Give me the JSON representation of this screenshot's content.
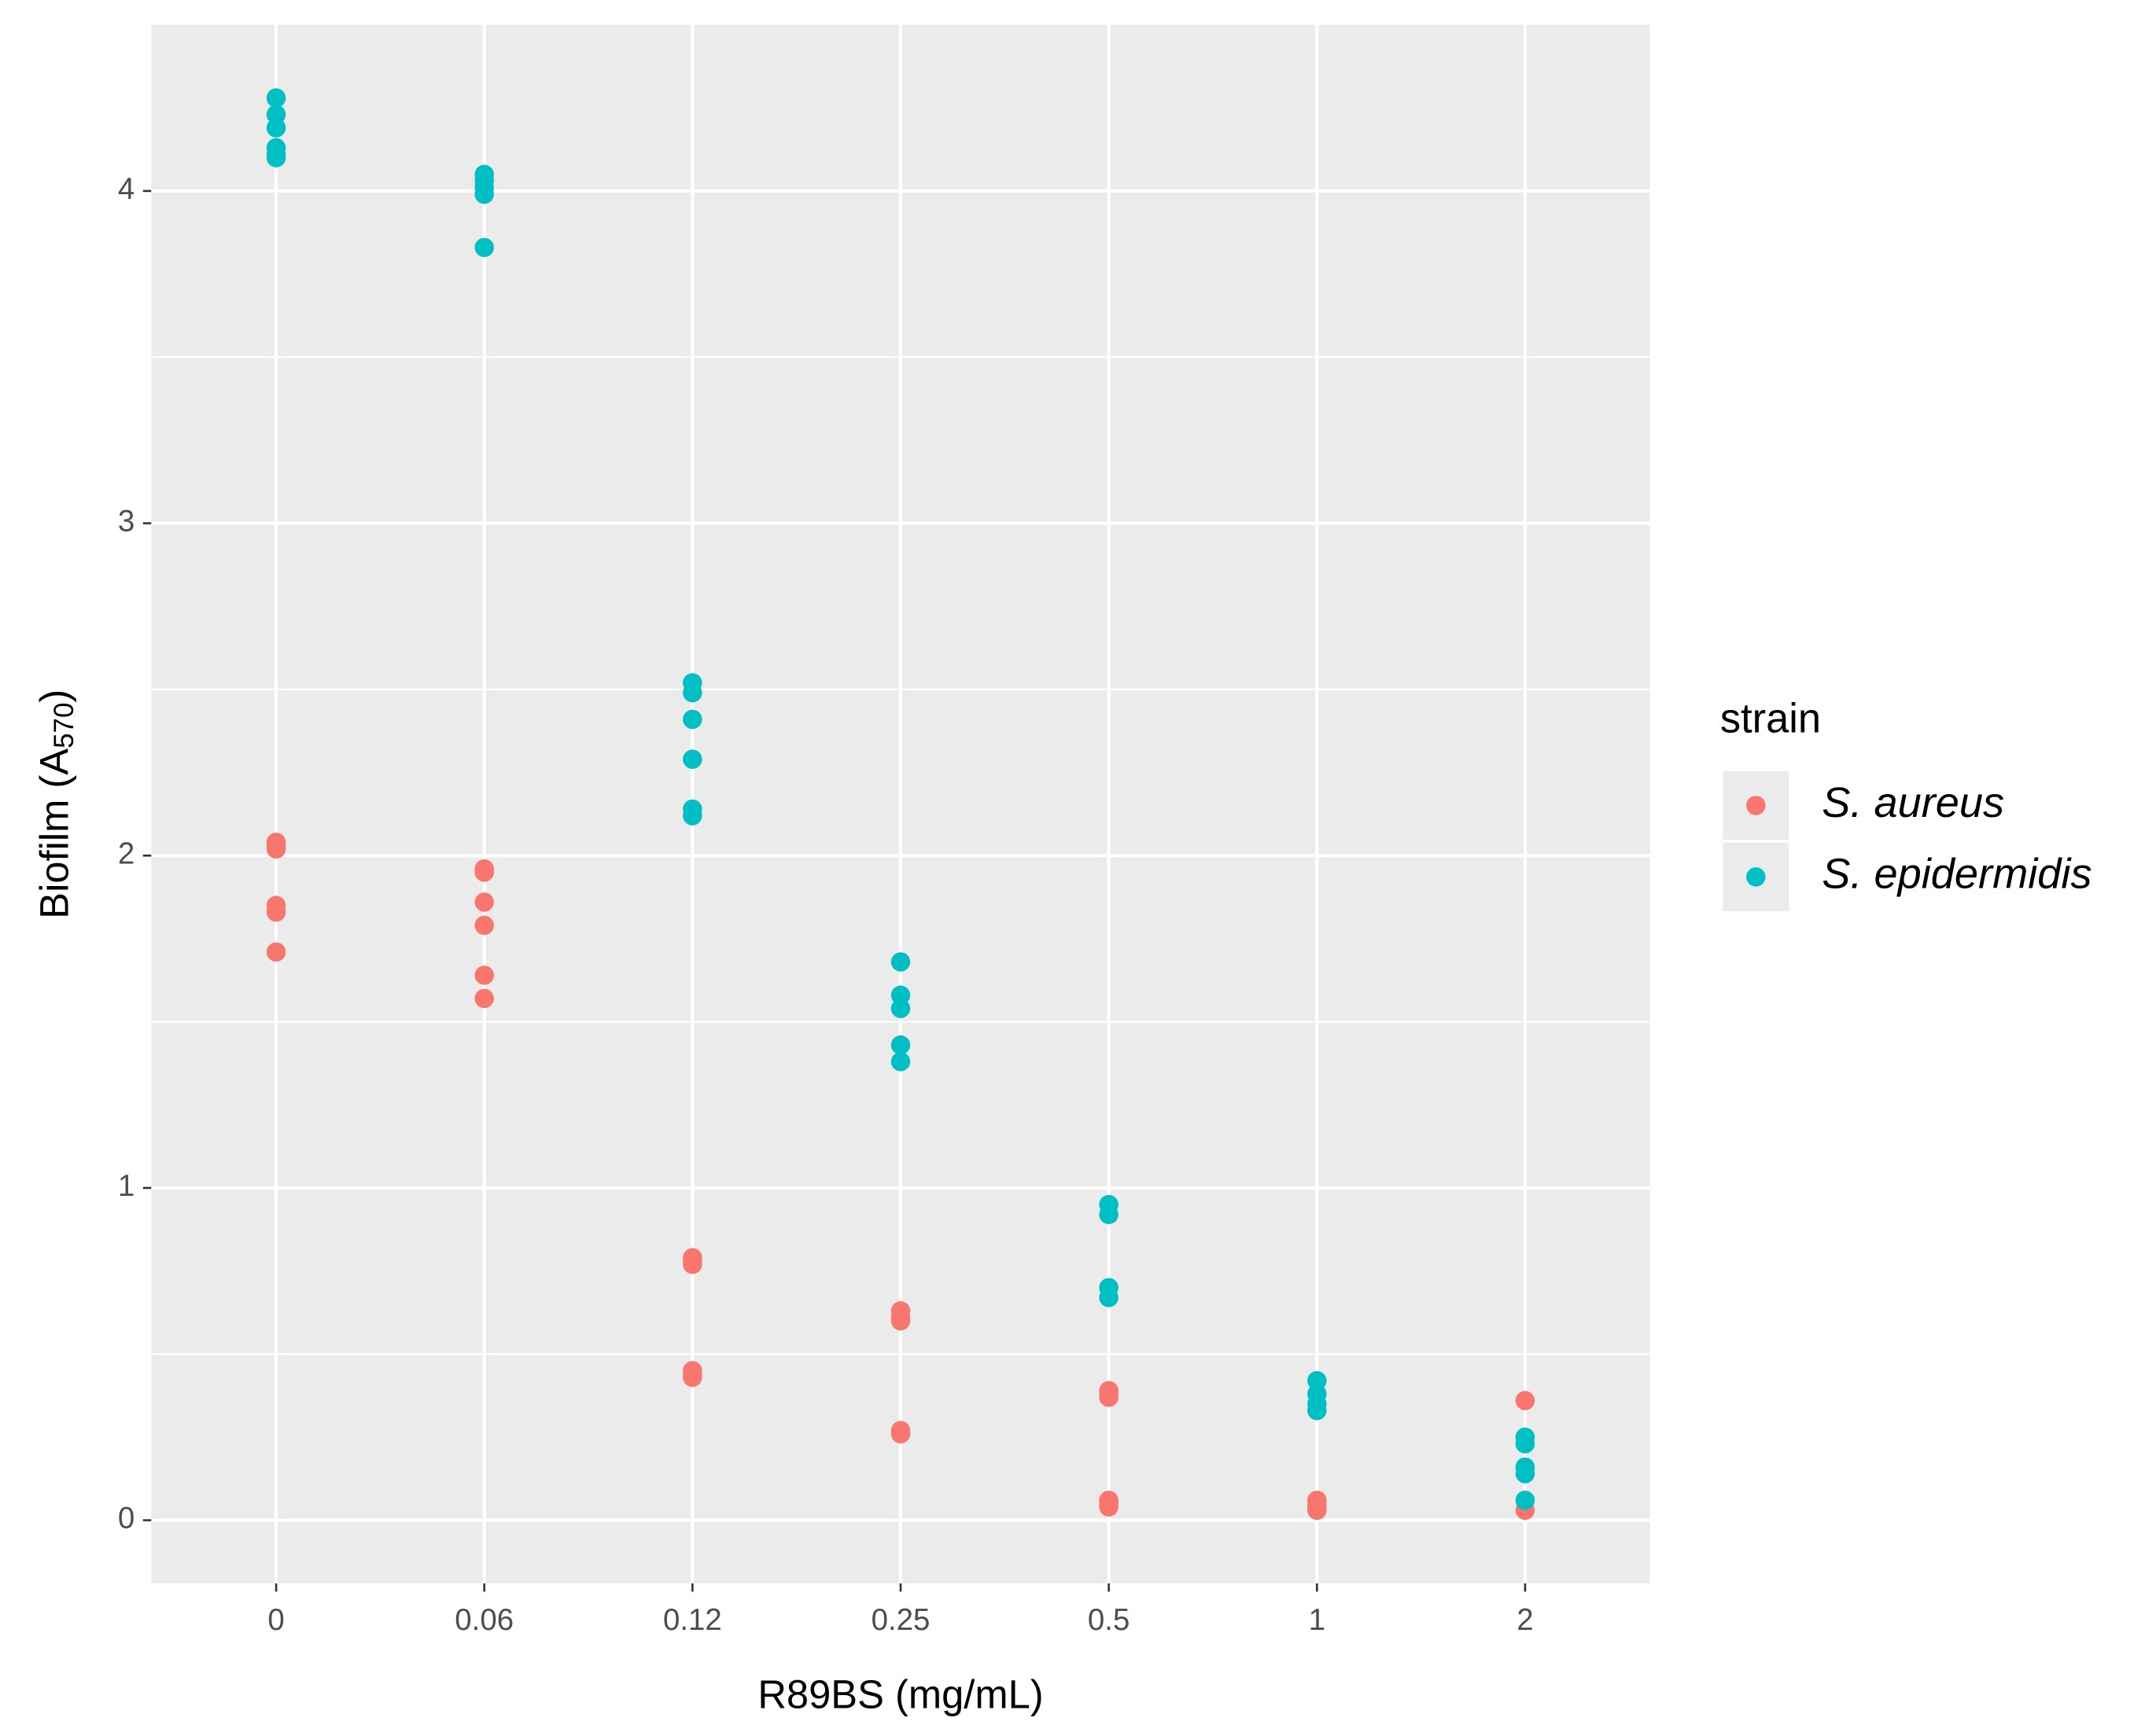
{
  "chart_data": {
    "type": "strip",
    "xlabel": "R89BS (mg/mL)",
    "ylabel": [
      "Biofilm (A",
      "570",
      ")"
    ],
    "categories": [
      "0",
      "0.06",
      "0.12",
      "0.25",
      "0.5",
      "1",
      "2"
    ],
    "ylim": [
      -0.19,
      4.5
    ],
    "yticks": [
      0,
      1,
      2,
      3,
      4
    ],
    "grid": true,
    "minor_grid": true,
    "legend_title": "strain",
    "legend": "right",
    "series": [
      {
        "name": "S. aureus",
        "color": "#F8766D",
        "values": [
          [
            2.04,
            2.03,
            2.02,
            1.85,
            1.83,
            1.71
          ],
          [
            1.96,
            1.95,
            1.86,
            1.79,
            1.64,
            1.57
          ],
          [
            0.79,
            0.78,
            0.77,
            0.45,
            0.44,
            0.43
          ],
          [
            0.63,
            0.61,
            0.6,
            0.27,
            0.26
          ],
          [
            0.39,
            0.38,
            0.37,
            0.06,
            0.05,
            0.04
          ],
          [
            0.06,
            0.05,
            0.04,
            0.03
          ],
          [
            0.36,
            0.03
          ]
        ]
      },
      {
        "name": "S. epidermidis",
        "color": "#00BFC4",
        "values": [
          [
            4.28,
            4.23,
            4.19,
            4.13,
            4.11,
            4.1
          ],
          [
            4.05,
            4.03,
            4.01,
            3.99,
            3.83
          ],
          [
            2.52,
            2.49,
            2.41,
            2.29,
            2.14,
            2.12
          ],
          [
            1.68,
            1.58,
            1.54,
            1.43,
            1.38
          ],
          [
            0.95,
            0.92,
            0.7,
            0.67
          ],
          [
            0.42,
            0.38,
            0.35,
            0.33
          ],
          [
            0.25,
            0.23,
            0.16,
            0.14,
            0.06
          ]
        ]
      }
    ]
  }
}
